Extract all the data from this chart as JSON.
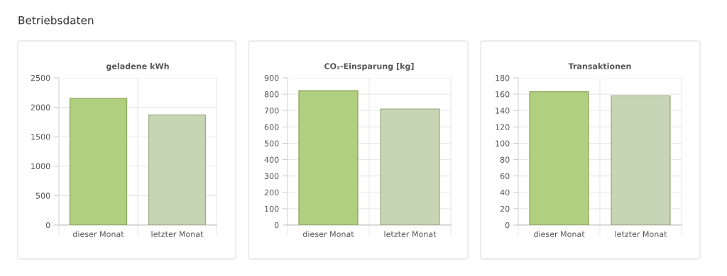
{
  "chart_data": [
    {
      "type": "bar",
      "title": "geladene kWh",
      "annotations": [
        "Betriebsdaten"
      ],
      "categories": [
        "dieser Monat",
        "letzter Monat"
      ],
      "values": [
        2150,
        1870
      ],
      "colors": [
        "#b1d07f",
        "#c6d6b4"
      ],
      "ylim": [
        0,
        2500
      ],
      "yticks": [
        0,
        500,
        1000,
        1500,
        2000,
        2500
      ],
      "grid": true
    },
    {
      "type": "bar",
      "title": "CO₂-Einsparung [kg]",
      "categories": [
        "dieser Monat",
        "letzter Monat"
      ],
      "values": [
        821,
        709
      ],
      "colors": [
        "#b1d07f",
        "#c6d6b4"
      ],
      "ylim": [
        0,
        900
      ],
      "yticks": [
        0,
        100,
        200,
        300,
        400,
        500,
        600,
        700,
        800,
        900
      ],
      "grid": true
    },
    {
      "type": "bar",
      "title": "Transaktionen",
      "categories": [
        "dieser Monat",
        "letzter Monat"
      ],
      "values": [
        163,
        158
      ],
      "colors": [
        "#b1d07f",
        "#c6d6b4"
      ],
      "ylim": [
        0,
        180
      ],
      "yticks": [
        0,
        20,
        40,
        60,
        80,
        100,
        120,
        140,
        160,
        180
      ],
      "grid": true
    }
  ]
}
